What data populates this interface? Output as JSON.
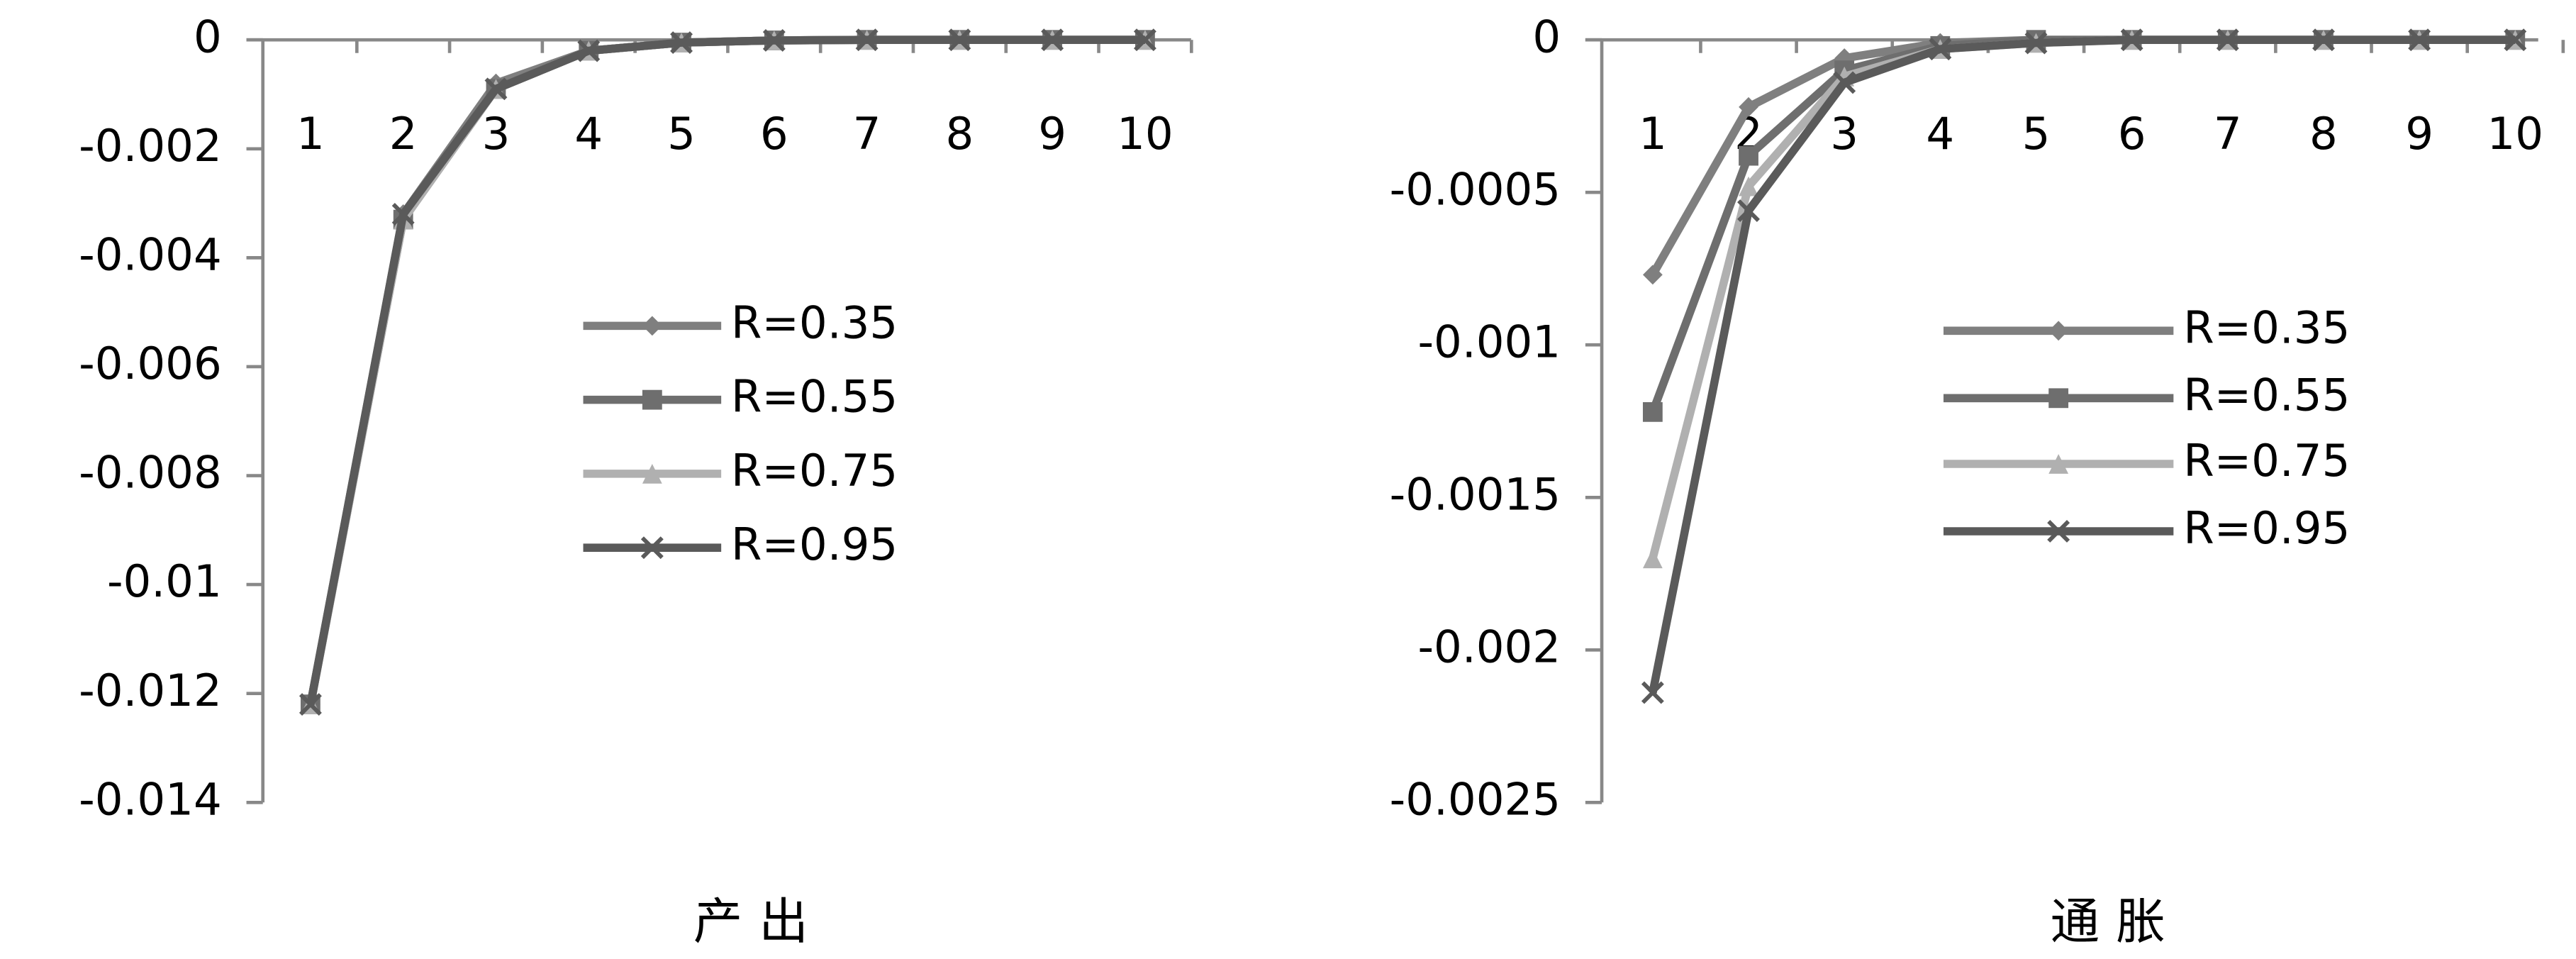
{
  "chart_data": [
    {
      "type": "line",
      "title": "产出",
      "categories": [
        "1",
        "2",
        "3",
        "4",
        "5",
        "6",
        "7",
        "8",
        "9",
        "10"
      ],
      "ylim": [
        -0.014,
        0
      ],
      "yticks": [
        0,
        -0.002,
        -0.004,
        -0.006,
        -0.008,
        -0.01,
        -0.012,
        -0.014
      ],
      "series": [
        {
          "name": "R=0.35",
          "color": "#7f7f7f",
          "marker": "diamond",
          "values": [
            -0.0122,
            -0.0032,
            -0.0008,
            -0.0002,
            -5e-05,
            -1e-05,
            0,
            0,
            0,
            0
          ]
        },
        {
          "name": "R=0.55",
          "color": "#6e6e6e",
          "marker": "square",
          "values": [
            -0.0122,
            -0.0033,
            -0.0009,
            -0.0002,
            -5e-05,
            -1e-05,
            0,
            0,
            0,
            0
          ]
        },
        {
          "name": "R=0.75",
          "color": "#b0b0b0",
          "marker": "triangle",
          "values": [
            -0.0122,
            -0.0033,
            -0.0009,
            -0.0002,
            -5e-05,
            -1e-05,
            0,
            0,
            0,
            0
          ]
        },
        {
          "name": "R=0.95",
          "color": "#5a5a5a",
          "marker": "x",
          "values": [
            -0.0122,
            -0.0032,
            -0.0009,
            -0.0002,
            -5e-05,
            -1e-05,
            0,
            0,
            0,
            0
          ]
        }
      ]
    },
    {
      "type": "line",
      "title": "通胀",
      "categories": [
        "1",
        "2",
        "3",
        "4",
        "5",
        "6",
        "7",
        "8",
        "9",
        "10"
      ],
      "ylim": [
        -0.0025,
        0
      ],
      "yticks": [
        0,
        -0.0005,
        -0.001,
        -0.0015,
        -0.002,
        -0.0025
      ],
      "series": [
        {
          "name": "R=0.35",
          "color": "#7f7f7f",
          "marker": "diamond",
          "values": [
            -0.00077,
            -0.00022,
            -6e-05,
            -1e-05,
            0,
            0,
            0,
            0,
            0,
            0
          ]
        },
        {
          "name": "R=0.55",
          "color": "#6e6e6e",
          "marker": "square",
          "values": [
            -0.00122,
            -0.00038,
            -0.0001,
            -2e-05,
            0,
            0,
            0,
            0,
            0,
            0
          ]
        },
        {
          "name": "R=0.75",
          "color": "#b0b0b0",
          "marker": "triangle",
          "values": [
            -0.0017,
            -0.00048,
            -0.00012,
            -3e-05,
            -1e-05,
            0,
            0,
            0,
            0,
            0
          ]
        },
        {
          "name": "R=0.95",
          "color": "#5a5a5a",
          "marker": "x",
          "values": [
            -0.00214,
            -0.00056,
            -0.00014,
            -3e-05,
            -1e-05,
            0,
            0,
            0,
            0,
            0
          ]
        }
      ]
    }
  ]
}
